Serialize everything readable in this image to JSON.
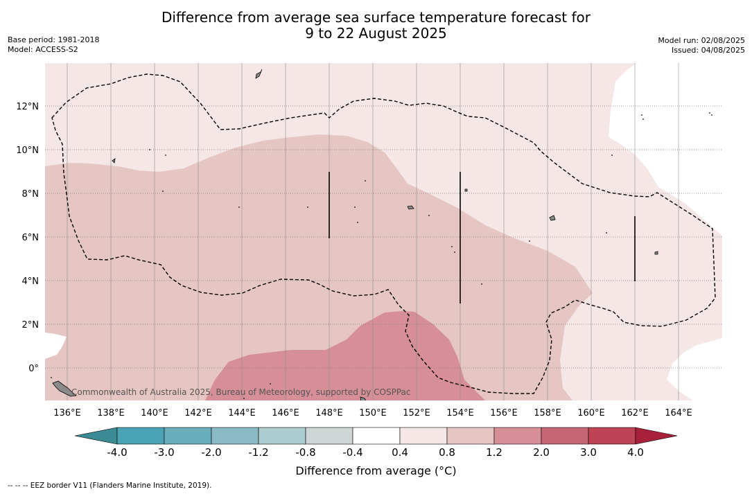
{
  "title": {
    "line1": "Difference from average sea surface temperature forecast for",
    "line2": "9 to 22 August 2025"
  },
  "meta_left": {
    "base_period": "Base period: 1981-2018",
    "model": "Model: ACCESS-S2"
  },
  "meta_right": {
    "model_run": "Model run: 02/08/2025",
    "issued": "Issued: 04/08/2025"
  },
  "map": {
    "lon_labels": [
      "136°E",
      "138°E",
      "140°E",
      "142°E",
      "144°E",
      "146°E",
      "148°E",
      "150°E",
      "152°E",
      "154°E",
      "156°E",
      "158°E",
      "160°E",
      "162°E",
      "164°E"
    ],
    "lat_labels": [
      "12°N",
      "10°N",
      "8°N",
      "6°N",
      "4°N",
      "2°N",
      "0°"
    ],
    "copyright": "Commonwealth of Australia 2025, Bureau of Meteorology, supported by COSPPac",
    "colors": {
      "class_0_4_0_8": "#f4e7e6",
      "class_0_8_1_2": "#e6c6c2",
      "class_1_2_2_0": "#d68f97",
      "land": "#8a8a8a"
    }
  },
  "colorbar": {
    "ticks": [
      "-4.0",
      "-3.0",
      "-2.0",
      "-1.2",
      "-0.8",
      "-0.4",
      "0.4",
      "0.8",
      "1.2",
      "2.0",
      "3.0",
      "4.0"
    ],
    "colors": [
      "#3b8b95",
      "#4aa3b4",
      "#6aaebd",
      "#8bbac5",
      "#acccd0",
      "#ced6d6",
      "#ffffff",
      "#f4e7e6",
      "#e6c6c2",
      "#d68f97",
      "#c76673",
      "#be4455",
      "#a8203a"
    ],
    "title": "Difference from average (°C)"
  },
  "footnote": "--  --  -- EEZ border V11 (Flanders Marine Institute, 2019)."
}
